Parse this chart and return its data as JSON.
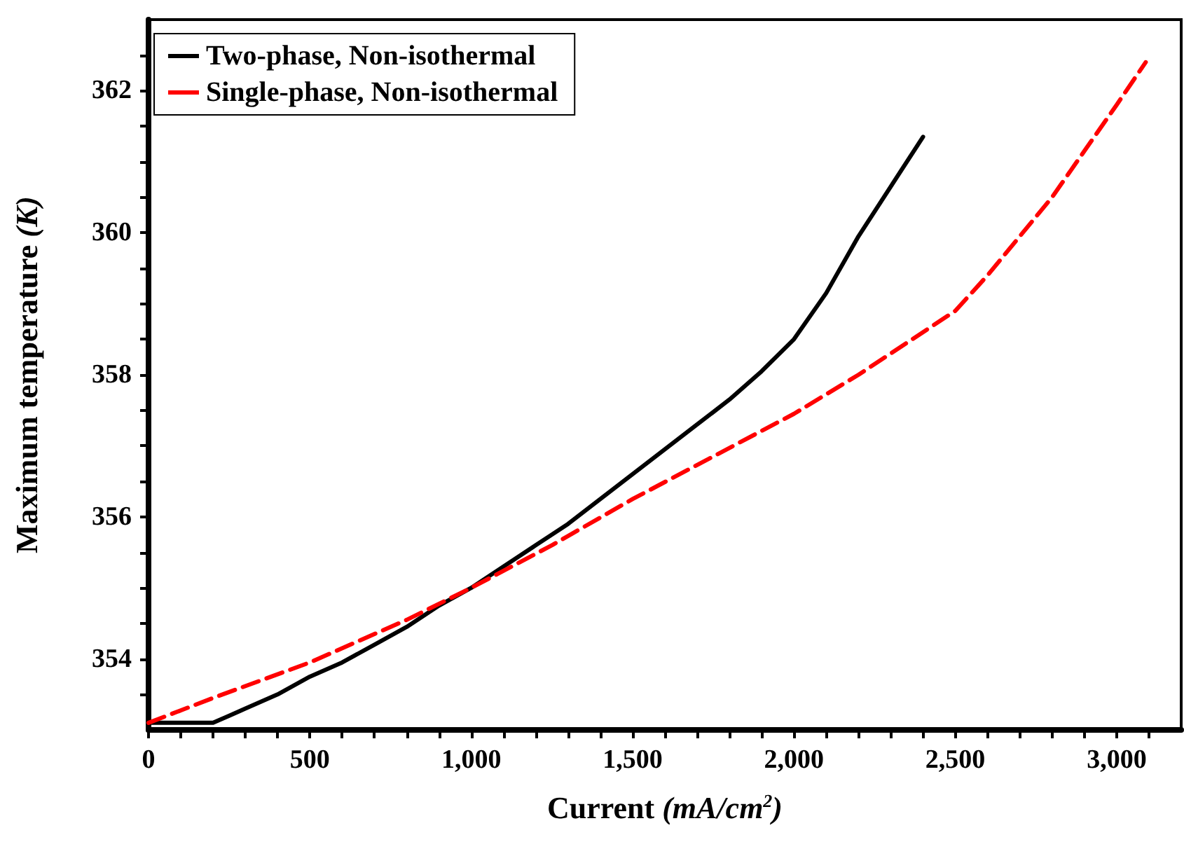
{
  "chart_data": {
    "type": "line",
    "xlabel": "Current (mA/cm$^{2}$)",
    "ylabel": "Maximum temperature (K)",
    "xlim": [
      0,
      3200
    ],
    "xticks": [
      0,
      {
        "value": 100,
        "label": null
      },
      {
        "value": 200,
        "label": null
      },
      {
        "value": 300,
        "label": null
      },
      {
        "value": 400,
        "label": null
      },
      500,
      {
        "value": 600,
        "label": null
      },
      {
        "value": 700,
        "label": null
      },
      {
        "value": 800,
        "label": null
      },
      {
        "value": 900,
        "label": null
      },
      {
        "value": 1000,
        "label": "1,000"
      },
      {
        "value": 1100,
        "label": null
      },
      {
        "value": 1200,
        "label": null
      },
      {
        "value": 1300,
        "label": null
      },
      {
        "value": 1400,
        "label": null
      },
      {
        "value": 1500,
        "label": "1,500"
      },
      {
        "value": 1600,
        "label": null
      },
      {
        "value": 1700,
        "label": null
      },
      {
        "value": 1800,
        "label": null
      },
      {
        "value": 1900,
        "label": null
      },
      {
        "value": 2000,
        "label": "2,000"
      },
      {
        "value": 2100,
        "label": null
      },
      {
        "value": 2200,
        "label": null
      },
      {
        "value": 2300,
        "label": null
      },
      {
        "value": 2400,
        "label": null
      },
      {
        "value": 2500,
        "label": "2,500"
      },
      {
        "value": 2600,
        "label": null
      },
      {
        "value": 2700,
        "label": null
      },
      {
        "value": 2800,
        "label": null
      },
      {
        "value": 2900,
        "label": null
      },
      {
        "value": 3000,
        "label": "3,000"
      },
      {
        "value": 3100,
        "label": null
      }
    ],
    "ylim": [
      353.0,
      363
    ],
    "yticks": [
      {
        "value": 353.5,
        "label": null
      },
      354,
      {
        "value": 354.5,
        "label": null
      },
      {
        "value": 355,
        "label": null
      },
      {
        "value": 355.5,
        "label": null
      },
      356,
      {
        "value": 356.5,
        "label": null
      },
      {
        "value": 357,
        "label": null
      },
      {
        "value": 357.5,
        "label": null
      },
      358,
      {
        "value": 358.5,
        "label": null
      },
      {
        "value": 359,
        "label": null
      },
      {
        "value": 359.5,
        "label": null
      },
      360,
      {
        "value": 360.5,
        "label": null
      },
      {
        "value": 361,
        "label": null
      },
      {
        "value": 361.5,
        "label": null
      },
      362,
      {
        "value": 362.5,
        "label": null
      }
    ],
    "grid": false,
    "legend": "top left",
    "marker": "none",
    "series": [
      {
        "name": "Two-phase, Non-isothermal",
        "color": "#000000",
        "line_style": "solid",
        "x": [
          0,
          200,
          250,
          300,
          400,
          500,
          600,
          700,
          800,
          900,
          1000,
          1100,
          1200,
          1300,
          1400,
          1500,
          1600,
          1700,
          1800,
          1900,
          2000,
          2100,
          2200,
          2300,
          2400
        ],
        "values": [
          353.1,
          353.1,
          353.2,
          353.3,
          353.5,
          353.75,
          353.95,
          354.2,
          354.45,
          354.75,
          355.0,
          355.3,
          355.6,
          355.9,
          356.25,
          356.6,
          356.95,
          357.3,
          357.65,
          358.05,
          358.5,
          359.15,
          359.95,
          360.65,
          361.35
        ]
      },
      {
        "name": "Single-phase, Non-isothermal",
        "color": "#ff0000",
        "line_style": "dashed",
        "x": [
          0,
          200,
          500,
          800,
          1000,
          1250,
          1500,
          1750,
          2000,
          2200,
          2400,
          2500,
          2600,
          2700,
          2800,
          2900,
          3000,
          3090
        ],
        "values": [
          353.1,
          353.45,
          353.95,
          354.55,
          355.0,
          355.6,
          356.25,
          356.85,
          357.45,
          358.0,
          358.6,
          358.9,
          359.4,
          359.95,
          360.5,
          361.15,
          361.8,
          362.4
        ]
      }
    ]
  }
}
